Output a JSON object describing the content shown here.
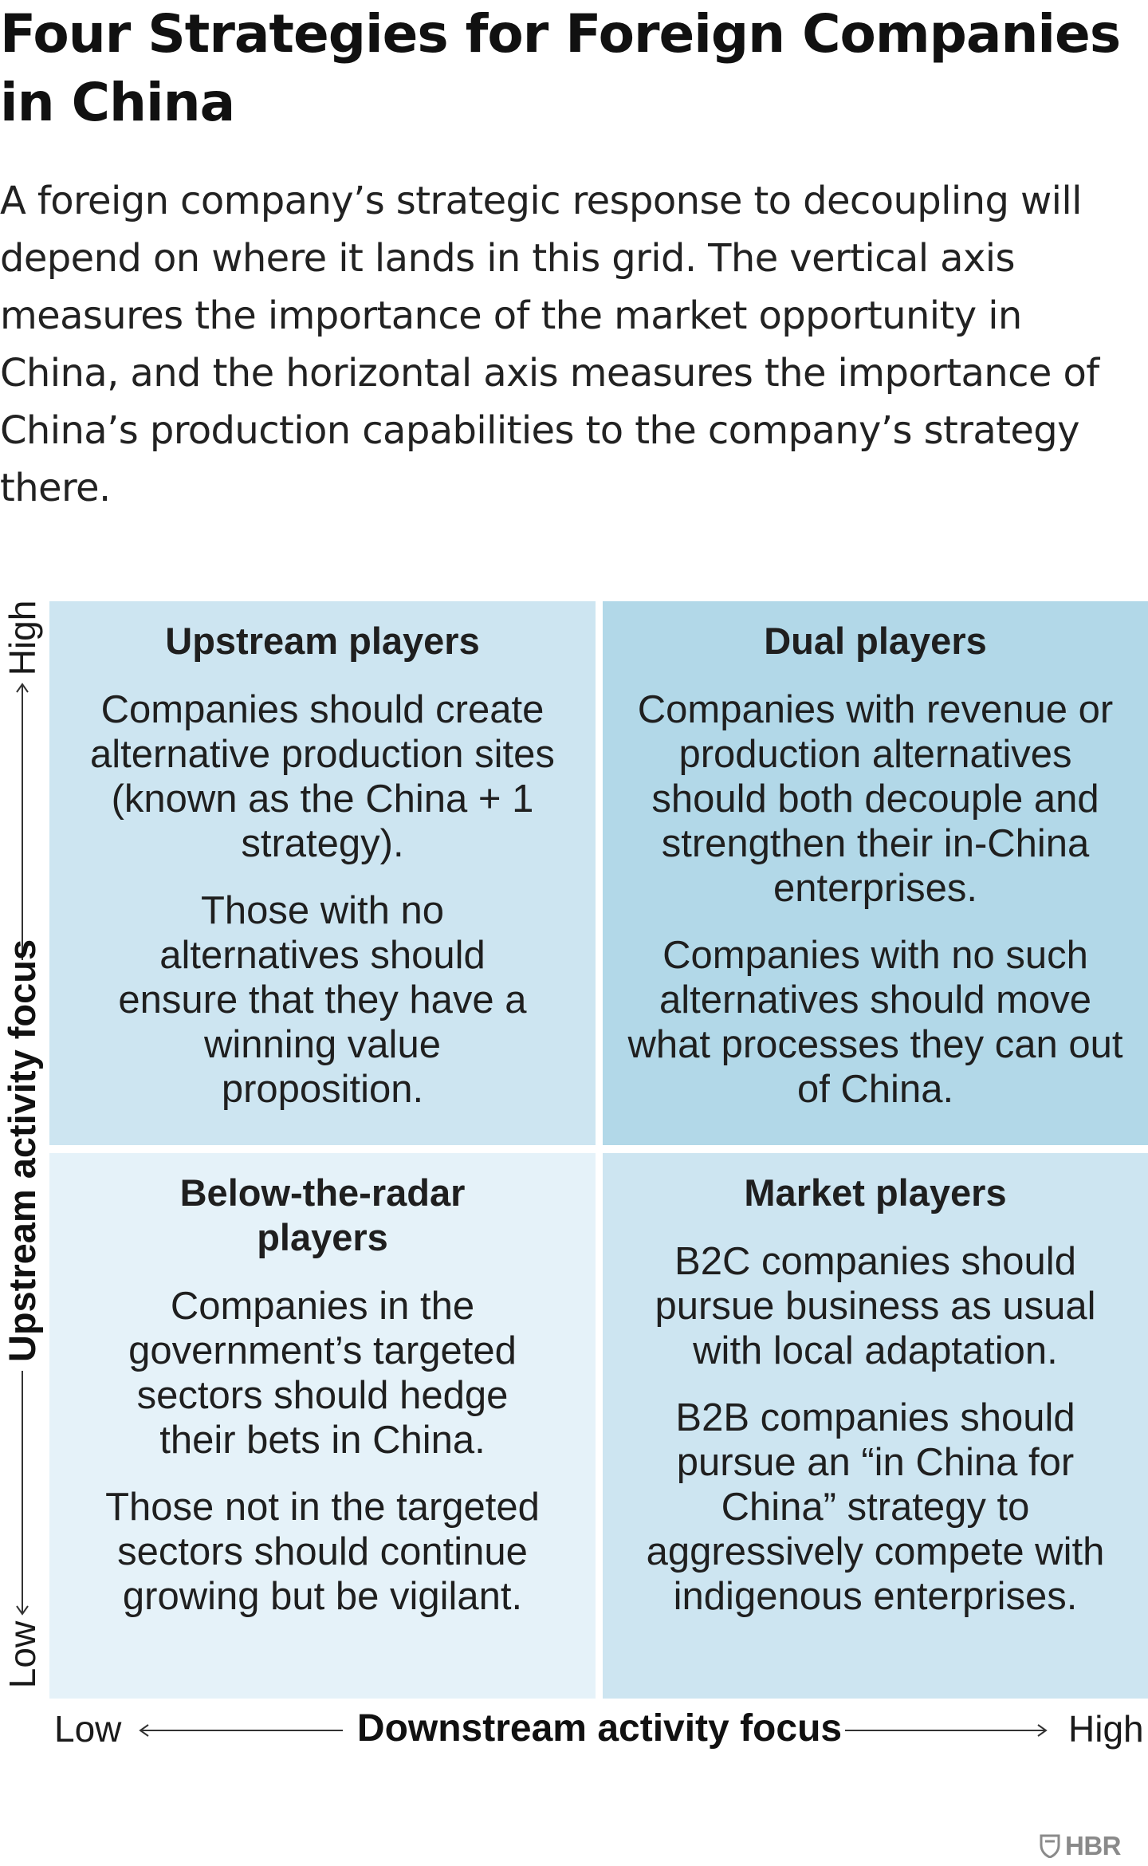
{
  "title": "Four Strategies for Foreign Companies in China",
  "intro": "A foreign company’s strategic response to decoupling will depend on where it lands in this grid. The vertical axis measures the importance of the market opportunity in China, and the horizontal axis measures the importance of China’s production capabilities to the company’s strategy there.",
  "colors": {
    "upstream_players_bg": "#cde5f1",
    "dual_players_bg": "#b2d8e8",
    "below_radar_bg": "#e5f2f9",
    "market_players_bg": "#cde5f1",
    "text": "#1a1a1a",
    "logo": "#8a8a8a"
  },
  "y_axis": {
    "label": "Upstream activity focus",
    "low": "Low",
    "high": "High"
  },
  "x_axis": {
    "label": "Downstream activity focus",
    "low": "Low",
    "high": "High"
  },
  "quadrants": {
    "top_left": {
      "title": "Upstream players",
      "paragraphs": [
        "Companies should create alternative production sites (known as the China + 1 strategy).",
        "Those with no alternatives should ensure that they have a winning value proposition."
      ]
    },
    "top_right": {
      "title": "Dual players",
      "paragraphs": [
        "Companies with revenue or production alternatives should both decouple and strengthen their in-China enterprises.",
        "Companies with no such alternatives should move what processes they can out of China."
      ]
    },
    "bottom_left": {
      "title": "Below-the-radar players",
      "paragraphs": [
        "Companies in the government’s targeted sectors should hedge their bets in China.",
        "Those not in the targeted sectors should continue growing but be vigilant."
      ]
    },
    "bottom_right": {
      "title": "Market players",
      "paragraphs": [
        "B2C companies should pursue business as usual with local adaptation.",
        "B2B companies should pursue an “in China for China” strategy to aggressively compete with indigenous enterprises."
      ]
    }
  },
  "logo": {
    "text": "HBR",
    "icon": "shield-icon"
  }
}
